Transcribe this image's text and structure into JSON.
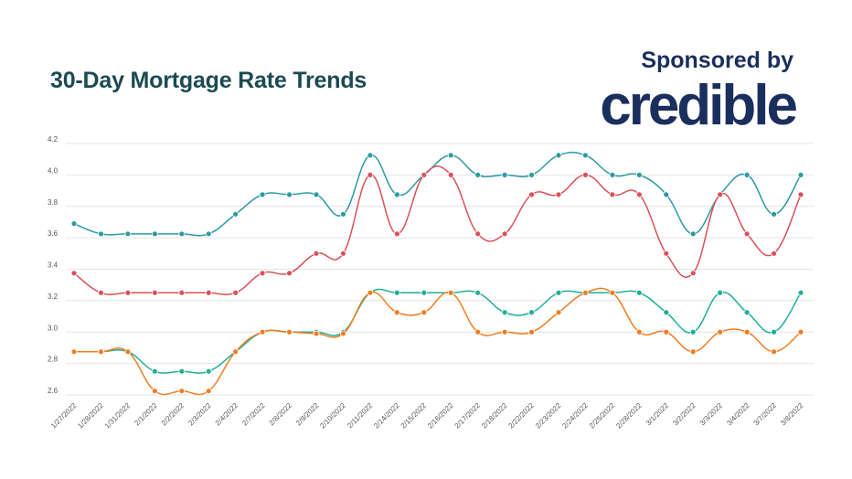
{
  "header": {
    "title": "30-Day Mortgage Rate Trends",
    "sponsor_label": "Sponsored by",
    "brand": "credible"
  },
  "chart_data": {
    "type": "line",
    "title": "30-Day Mortgage Rate Trends",
    "xlabel": "",
    "ylabel": "",
    "ylim": [
      2.6,
      4.2
    ],
    "yticks": [
      "2.6",
      "2.8",
      "3.0",
      "3.2",
      "3.4",
      "3.6",
      "3.8",
      "4.0",
      "4.2"
    ],
    "grid": true,
    "legend": "none",
    "categories": [
      "1/27/2022",
      "1/28/2022",
      "1/31/2022",
      "2/1/2022",
      "2/2/2022",
      "2/3/2022",
      "2/4/2022",
      "2/7/2022",
      "2/8/2022",
      "2/9/2022",
      "2/10/2022",
      "2/11/2022",
      "2/14/2022",
      "2/15/2022",
      "2/16/2022",
      "2/17/2022",
      "2/18/2022",
      "2/22/2022",
      "2/23/2022",
      "2/24/2022",
      "2/25/2022",
      "2/28/2022",
      "3/1/2022",
      "3/2/2022",
      "3/3/2022",
      "3/4/2022",
      "3/7/2022",
      "3/8/2022"
    ],
    "series": [
      {
        "color": "#2b9aa3",
        "values": [
          3.69,
          3.625,
          3.625,
          3.625,
          3.625,
          3.625,
          3.75,
          3.875,
          3.875,
          3.875,
          3.75,
          4.125,
          3.875,
          4.0,
          4.125,
          4.0,
          4.0,
          4.0,
          4.125,
          4.125,
          4.0,
          4.0,
          3.875,
          3.625,
          3.875,
          4.0,
          3.75,
          4.0
        ]
      },
      {
        "color": "#d9505a",
        "values": [
          3.375,
          3.25,
          3.25,
          3.25,
          3.25,
          3.25,
          3.25,
          3.375,
          3.375,
          3.5,
          3.5,
          4.0,
          3.625,
          4.0,
          4.0,
          3.625,
          3.625,
          3.875,
          3.875,
          4.0,
          3.875,
          3.875,
          3.5,
          3.375,
          3.875,
          3.625,
          3.5,
          3.875
        ]
      },
      {
        "color": "#1fae98",
        "values": [
          2.875,
          2.875,
          2.875,
          2.75,
          2.75,
          2.75,
          2.875,
          3.0,
          3.0,
          3.0,
          3.0,
          3.25,
          3.25,
          3.25,
          3.25,
          3.25,
          3.125,
          3.125,
          3.25,
          3.25,
          3.25,
          3.25,
          3.125,
          3.0,
          3.25,
          3.125,
          3.0,
          3.25
        ]
      },
      {
        "color": "#f07d22",
        "values": [
          2.875,
          2.875,
          2.875,
          2.625,
          2.625,
          2.625,
          2.875,
          3.0,
          3.0,
          2.99,
          2.99,
          3.25,
          3.125,
          3.125,
          3.25,
          3.0,
          3.0,
          3.0,
          3.125,
          3.25,
          3.25,
          3.0,
          3.0,
          2.875,
          3.0,
          3.0,
          2.875,
          3.0
        ]
      }
    ]
  }
}
